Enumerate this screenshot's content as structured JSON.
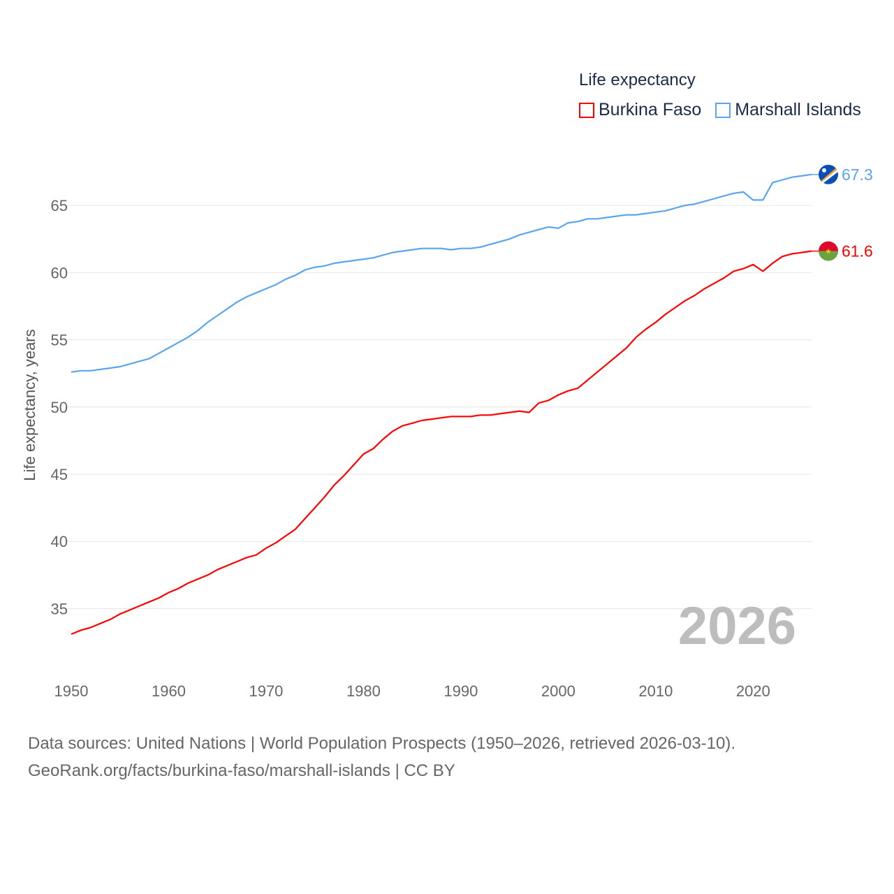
{
  "chart_data": {
    "type": "line",
    "title": "",
    "legend_title": "Life expectancy",
    "legend_placement": "top-right",
    "xlabel": "",
    "ylabel": "Life expectancy, years",
    "xlim": [
      1950,
      2026
    ],
    "ylim": [
      30.4,
      68.85
    ],
    "xticks": [
      1950,
      1960,
      1970,
      1980,
      1990,
      2000,
      2010,
      2020
    ],
    "yticks": [
      35,
      40,
      45,
      50,
      55,
      60,
      65
    ],
    "grid": true,
    "current_year_label": "2026",
    "x": [
      1950,
      1951,
      1952,
      1953,
      1954,
      1955,
      1956,
      1957,
      1958,
      1959,
      1960,
      1961,
      1962,
      1963,
      1964,
      1965,
      1966,
      1967,
      1968,
      1969,
      1970,
      1971,
      1972,
      1973,
      1974,
      1975,
      1976,
      1977,
      1978,
      1979,
      1980,
      1981,
      1982,
      1983,
      1984,
      1985,
      1986,
      1987,
      1988,
      1989,
      1990,
      1991,
      1992,
      1993,
      1994,
      1995,
      1996,
      1997,
      1998,
      1999,
      2000,
      2001,
      2002,
      2003,
      2004,
      2005,
      2006,
      2007,
      2008,
      2009,
      2010,
      2011,
      2012,
      2013,
      2014,
      2015,
      2016,
      2017,
      2018,
      2019,
      2020,
      2021,
      2022,
      2023,
      2024,
      2025,
      2026
    ],
    "series": [
      {
        "name": "Burkina Faso",
        "color": "#ff0000",
        "end_label": "61.6",
        "values": [
          33.1,
          33.4,
          33.6,
          33.9,
          34.2,
          34.6,
          34.9,
          35.2,
          35.5,
          35.8,
          36.2,
          36.5,
          36.9,
          37.2,
          37.5,
          37.9,
          38.2,
          38.5,
          38.8,
          39.0,
          39.5,
          39.9,
          40.4,
          40.9,
          41.7,
          42.5,
          43.3,
          44.2,
          44.9,
          45.7,
          46.5,
          46.9,
          47.6,
          48.2,
          48.6,
          48.8,
          49.0,
          49.1,
          49.2,
          49.3,
          49.3,
          49.3,
          49.4,
          49.4,
          49.5,
          49.6,
          49.7,
          49.6,
          50.3,
          50.5,
          50.9,
          51.2,
          51.4,
          52.0,
          52.6,
          53.2,
          53.8,
          54.4,
          55.2,
          55.8,
          56.3,
          56.9,
          57.4,
          57.9,
          58.3,
          58.8,
          59.2,
          59.6,
          60.1,
          60.3,
          60.6,
          60.1,
          60.7,
          61.2,
          61.4,
          61.5,
          61.6
        ]
      },
      {
        "name": "Marshall Islands",
        "color": "#5ba4ee",
        "end_label": "67.3",
        "values": [
          52.6,
          52.7,
          52.7,
          52.8,
          52.9,
          53.0,
          53.2,
          53.4,
          53.6,
          54.0,
          54.4,
          54.8,
          55.2,
          55.7,
          56.3,
          56.8,
          57.3,
          57.8,
          58.2,
          58.5,
          58.8,
          59.1,
          59.5,
          59.8,
          60.2,
          60.4,
          60.5,
          60.7,
          60.8,
          60.9,
          61.0,
          61.1,
          61.3,
          61.5,
          61.6,
          61.7,
          61.8,
          61.8,
          61.8,
          61.7,
          61.8,
          61.8,
          61.9,
          62.1,
          62.3,
          62.5,
          62.8,
          63.0,
          63.2,
          63.4,
          63.3,
          63.7,
          63.8,
          64.0,
          64.0,
          64.1,
          64.2,
          64.3,
          64.3,
          64.4,
          64.5,
          64.6,
          64.8,
          65.0,
          65.1,
          65.3,
          65.5,
          65.7,
          65.9,
          66.0,
          65.4,
          65.4,
          66.7,
          66.9,
          67.1,
          67.2,
          67.3
        ]
      }
    ]
  },
  "footer": {
    "line1": "Data sources: United Nations | World Population Prospects (1950–2026, retrieved 2026-03-10).",
    "line2": "GeoRank.org/facts/burkina-faso/marshall-islands | CC BY"
  }
}
